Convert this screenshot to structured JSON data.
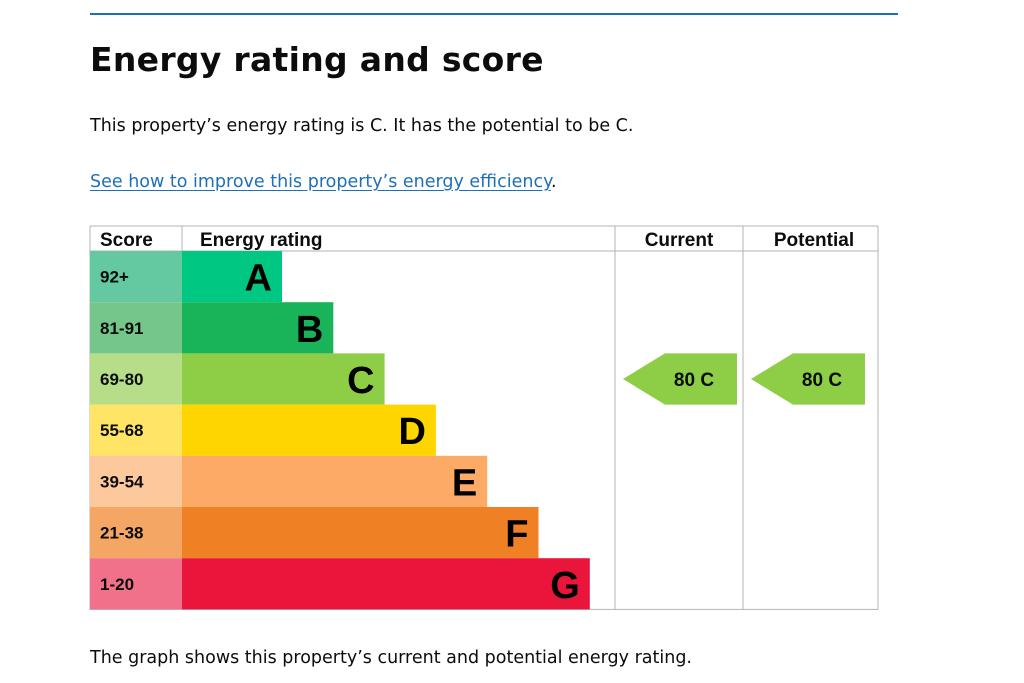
{
  "heading": "Energy rating and score",
  "summary": "This property’s energy rating is C. It has the potential to be C.",
  "link_text": "See how to improve this property’s energy efficiency",
  "link_suffix": ".",
  "caption": "The graph shows this property’s current and potential energy rating.",
  "chart_data": {
    "type": "table",
    "headers": {
      "score": "Score",
      "rating": "Energy rating",
      "current": "Current",
      "potential": "Potential"
    },
    "bands": [
      {
        "letter": "A",
        "range": "92+",
        "color": "#00c781",
        "score_bg": "#64c8a0"
      },
      {
        "letter": "B",
        "range": "81-91",
        "color": "#19b459",
        "score_bg": "#75c68b"
      },
      {
        "letter": "C",
        "range": "69-80",
        "color": "#8dce46",
        "score_bg": "#b6de89"
      },
      {
        "letter": "D",
        "range": "55-68",
        "color": "#ffd500",
        "score_bg": "#ffe466"
      },
      {
        "letter": "E",
        "range": "39-54",
        "color": "#fcaa65",
        "score_bg": "#fdc89c"
      },
      {
        "letter": "F",
        "range": "21-38",
        "color": "#ef8023",
        "score_bg": "#f4a765"
      },
      {
        "letter": "G",
        "range": "1-20",
        "color": "#e9153b",
        "score_bg": "#f07189"
      }
    ],
    "current": {
      "score": 80,
      "band": "C",
      "label": "80  C",
      "color": "#8dce46"
    },
    "potential": {
      "score": 80,
      "band": "C",
      "label": "80  C",
      "color": "#8dce46"
    }
  }
}
